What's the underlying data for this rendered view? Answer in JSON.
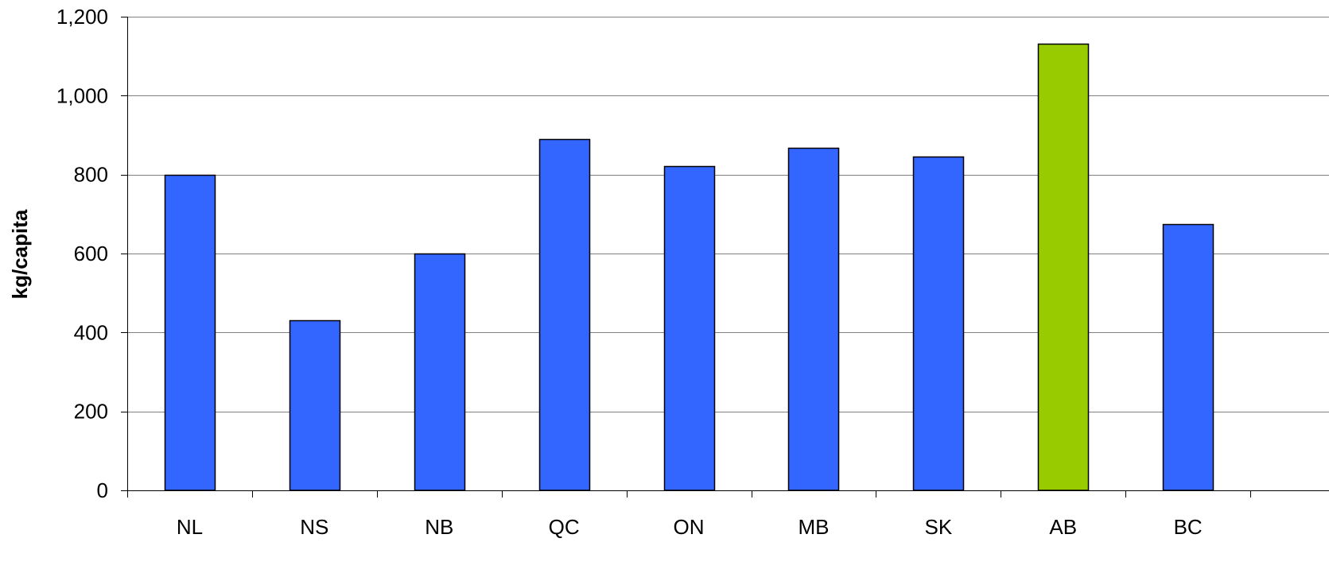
{
  "chart_data": {
    "type": "bar",
    "title": "",
    "xlabel": "",
    "ylabel": "kg/capita",
    "categories": [
      "NL",
      "NS",
      "NB",
      "QC",
      "ON",
      "MB",
      "SK",
      "AB",
      "BC"
    ],
    "values": [
      800,
      430,
      600,
      890,
      822,
      867,
      845,
      1132,
      675
    ],
    "ylim": [
      0,
      1200
    ],
    "yticks": [
      0,
      200,
      400,
      600,
      800,
      1000,
      1200
    ],
    "ytick_labels": [
      "0",
      "200",
      "400",
      "600",
      "800",
      "1,000",
      "1,200"
    ],
    "grid": true,
    "legend": "none",
    "colors": {
      "default_bar": "#3366FF",
      "highlight_bar": "#99CC00",
      "bar_outline": "#000000",
      "gridline": "#808080"
    },
    "highlight_category": "AB"
  }
}
